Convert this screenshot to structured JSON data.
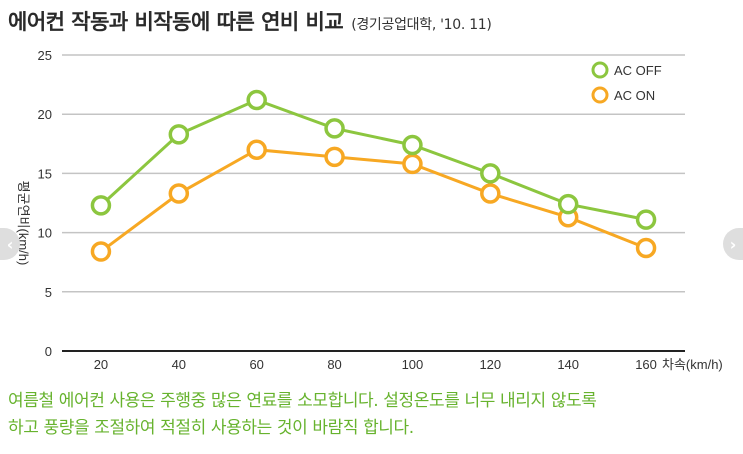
{
  "title": "에어컨 작동과 비작동에 따른 연비 비교",
  "source": "(경기공업대학, '10. 11)",
  "caption": {
    "line1": "여름철 에어컨 사용은 주행중 많은 연료를 소모합니다. 설정온도를 너무 내리지 않도록",
    "line2": "하고 풍량을 조절하여 적절히 사용하는 것이 바람직 합니다."
  },
  "nav": {
    "prev_icon": "chevron-left-icon",
    "next_icon": "chevron-right-icon",
    "prev_glyph": "‹",
    "next_glyph": "›"
  },
  "chart_data": {
    "type": "line",
    "x": [
      20,
      40,
      60,
      80,
      100,
      120,
      140,
      160
    ],
    "x_tick_labels": [
      "20",
      "40",
      "60",
      "80",
      "100",
      "120",
      "140",
      "160"
    ],
    "y_ticks": [
      0,
      5,
      10,
      15,
      20,
      25
    ],
    "ylim": [
      0,
      25
    ],
    "ylabel": "평균연비(km/h)",
    "xlabel": "차속(km/h)",
    "grid": true,
    "legend_position": "top-right",
    "series": [
      {
        "name": "AC OFF",
        "color": "#8cc63f",
        "values": [
          12.3,
          18.3,
          21.2,
          18.8,
          17.4,
          15.0,
          12.4,
          11.1
        ]
      },
      {
        "name": "AC ON",
        "color": "#f7a823",
        "values": [
          8.4,
          13.3,
          17.0,
          16.4,
          15.8,
          13.3,
          11.3,
          8.7
        ]
      }
    ]
  }
}
